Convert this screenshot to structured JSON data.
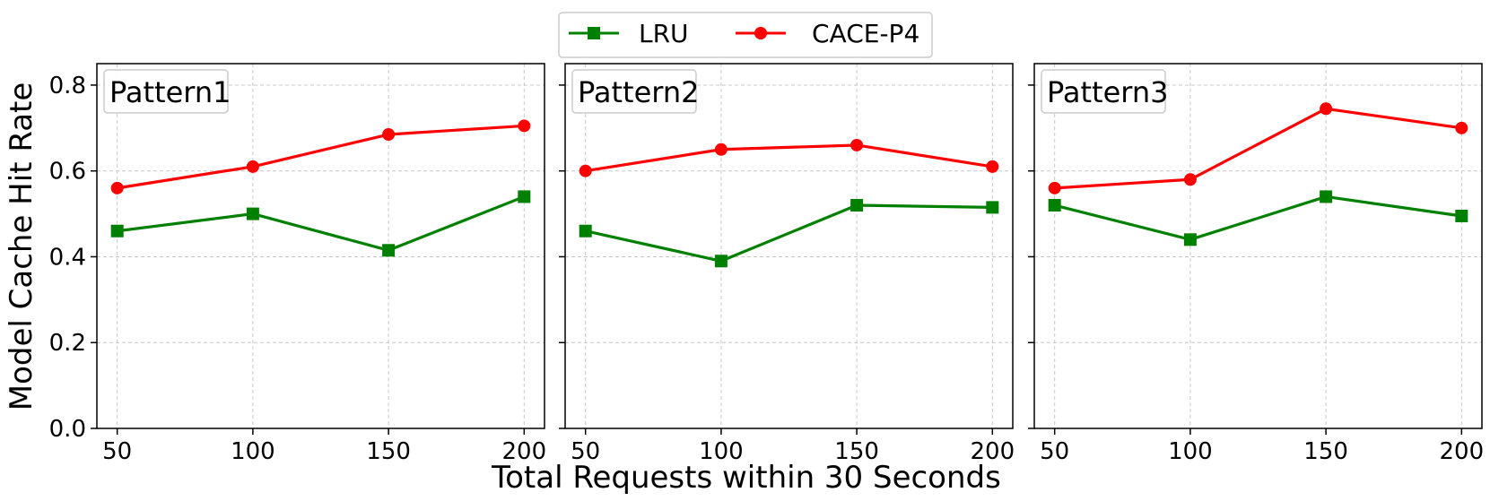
{
  "chart_data": {
    "type": "line",
    "ylabel": "Model Cache Hit Rate",
    "xlabel": "Total Requests within 30 Seconds",
    "ylim": [
      0.0,
      0.85
    ],
    "xlim": [
      42.5,
      207.5
    ],
    "x": [
      50,
      100,
      150,
      200
    ],
    "x_ticks": [
      "50",
      "100",
      "150",
      "200"
    ],
    "y_ticks": [
      "0.0",
      "0.2",
      "0.4",
      "0.6",
      "0.8"
    ],
    "grid": true,
    "legend_position": "top-center",
    "legend": [
      {
        "name": "LRU",
        "color": "#008000",
        "marker": "square"
      },
      {
        "name": "CACE-P4",
        "color": "#ff0000",
        "marker": "circle"
      }
    ],
    "panels": [
      {
        "title": "Pattern1",
        "series": [
          {
            "name": "LRU",
            "values": [
              0.46,
              0.5,
              0.415,
              0.54
            ]
          },
          {
            "name": "CACE-P4",
            "values": [
              0.56,
              0.61,
              0.685,
              0.705
            ]
          }
        ]
      },
      {
        "title": "Pattern2",
        "series": [
          {
            "name": "LRU",
            "values": [
              0.46,
              0.39,
              0.52,
              0.515
            ]
          },
          {
            "name": "CACE-P4",
            "values": [
              0.6,
              0.65,
              0.66,
              0.61
            ]
          }
        ]
      },
      {
        "title": "Pattern3",
        "series": [
          {
            "name": "LRU",
            "values": [
              0.52,
              0.44,
              0.54,
              0.495
            ]
          },
          {
            "name": "CACE-P4",
            "values": [
              0.56,
              0.58,
              0.745,
              0.7
            ]
          }
        ]
      }
    ]
  }
}
